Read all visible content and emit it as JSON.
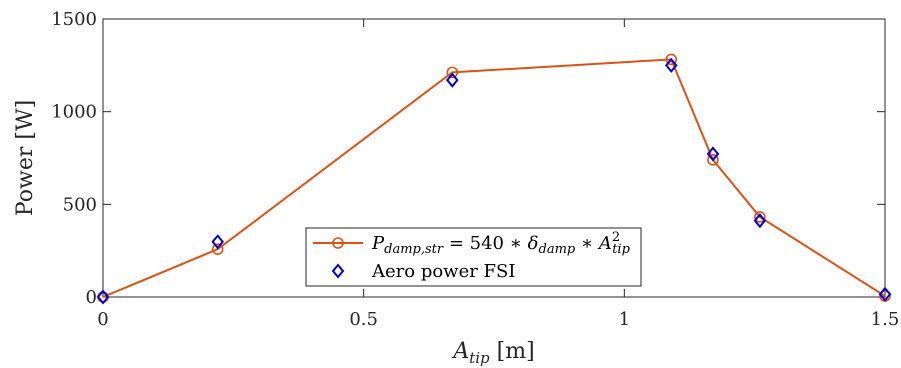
{
  "chart_data": {
    "type": "line",
    "xlabel": "A_tip [m]",
    "xlabel_main": "A",
    "xlabel_sub": "tip",
    "xlabel_unit": " [m]",
    "ylabel": "Power [W]",
    "xlim": [
      0,
      1.5
    ],
    "ylim": [
      0,
      1500
    ],
    "xticks": [
      "0",
      "0.5",
      "1",
      "1.5"
    ],
    "xtick_values": [
      0,
      0.5,
      1,
      1.5
    ],
    "yticks": [
      "0",
      "500",
      "1000",
      "1500"
    ],
    "ytick_values": [
      0,
      500,
      1000,
      1500
    ],
    "grid": false,
    "legend_position": "bottom-center",
    "series": [
      {
        "name": "P_damp,str = 540 * δ_damp * A_tip^2",
        "marker": "circle",
        "line": true,
        "color": "#D95319",
        "x": [
          0,
          0.22,
          0.67,
          1.09,
          1.17,
          1.26,
          1.5
        ],
        "y": [
          0,
          258,
          1212,
          1282,
          740,
          432,
          5
        ]
      },
      {
        "name": "Aero power FSI",
        "marker": "diamond",
        "line": false,
        "color": "#0000CC",
        "x": [
          0,
          0.22,
          0.67,
          1.09,
          1.17,
          1.26,
          1.5
        ],
        "y": [
          0,
          298,
          1170,
          1250,
          772,
          412,
          15
        ]
      }
    ]
  }
}
